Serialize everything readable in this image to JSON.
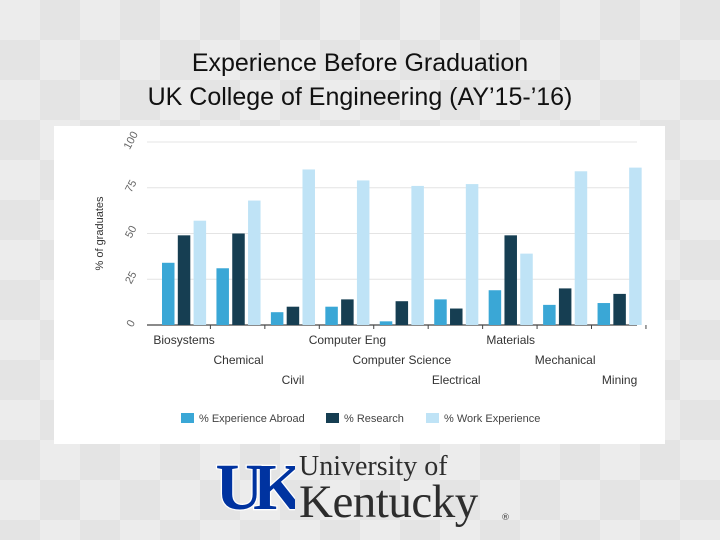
{
  "slide": {
    "title_line1": "Experience Before Graduation",
    "title_line2": "UK College of Engineering (AY’15-’16)"
  },
  "logo": {
    "mark": "UK",
    "line1": "University of",
    "line2": "Kentucky",
    "reg": "®"
  },
  "colors": {
    "abroad": "#3aa7d6",
    "research": "#163e52",
    "work": "#bfe3f6",
    "grid": "#e4e4e4",
    "axis": "#444444",
    "uk_blue": "#0033a0"
  },
  "chart_data": {
    "type": "bar",
    "ylabel": "% of graduates",
    "ylim": [
      0,
      100
    ],
    "yticks": [
      0,
      25,
      50,
      75,
      100
    ],
    "grid": true,
    "legend_position": "bottom",
    "categories": [
      "Biosystems",
      "Chemical",
      "Civil",
      "Computer Eng",
      "Computer Science",
      "Electrical",
      "Materials",
      "Mechanical",
      "Mining"
    ],
    "series": [
      {
        "name": "% Experience Abroad",
        "values": [
          34,
          31,
          7,
          10,
          2,
          14,
          19,
          11,
          12
        ]
      },
      {
        "name": "% Research",
        "values": [
          49,
          50,
          10,
          14,
          13,
          9,
          49,
          20,
          17
        ]
      },
      {
        "name": "% Work Experience",
        "values": [
          57,
          68,
          85,
          79,
          76,
          77,
          39,
          84,
          86
        ]
      }
    ]
  }
}
